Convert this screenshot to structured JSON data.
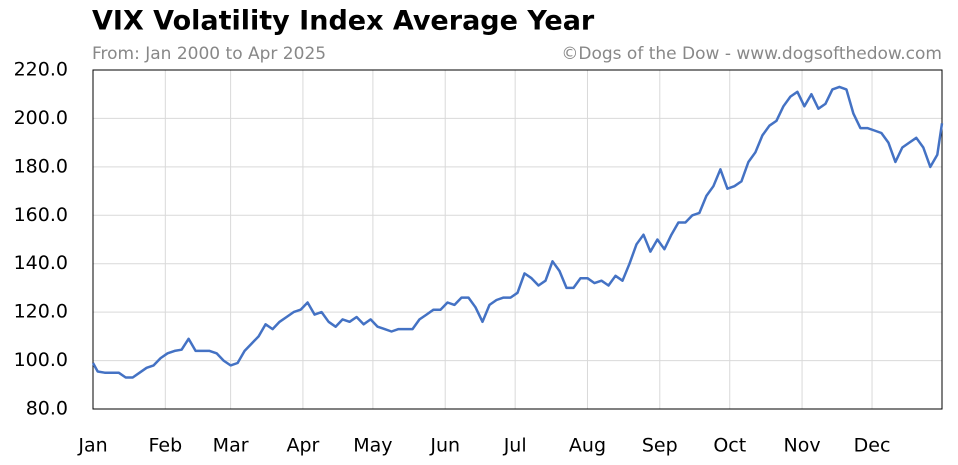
{
  "chart_data": {
    "type": "line",
    "title": "VIX Volatility Index Average Year",
    "subtitle": "From: Jan 2000 to Apr 2025",
    "source": "©Dogs of the Dow - www.dogsofthedow.com",
    "color": "#4472c4",
    "grid": true,
    "xlim": [
      1,
      365
    ],
    "xticks": [
      {
        "value": 1,
        "label": "Jan"
      },
      {
        "value": 32,
        "label": "Feb"
      },
      {
        "value": 60,
        "label": "Mar"
      },
      {
        "value": 91,
        "label": "Apr"
      },
      {
        "value": 121,
        "label": "May"
      },
      {
        "value": 152,
        "label": "Jun"
      },
      {
        "value": 182,
        "label": "Jul"
      },
      {
        "value": 213,
        "label": "Aug"
      },
      {
        "value": 244,
        "label": "Sep"
      },
      {
        "value": 274,
        "label": "Oct"
      },
      {
        "value": 305,
        "label": "Nov"
      },
      {
        "value": 335,
        "label": "Dec"
      }
    ],
    "ylim": [
      80,
      220
    ],
    "yticks": [
      {
        "value": 80,
        "label": "80.0"
      },
      {
        "value": 100,
        "label": "100.0"
      },
      {
        "value": 120,
        "label": "120.0"
      },
      {
        "value": 140,
        "label": "140.0"
      },
      {
        "value": 160,
        "label": "160.0"
      },
      {
        "value": 180,
        "label": "180.0"
      },
      {
        "value": 200,
        "label": "200.0"
      },
      {
        "value": 220,
        "label": "220.0"
      }
    ],
    "x": [
      1,
      3,
      6,
      9,
      12,
      15,
      18,
      21,
      24,
      27,
      30,
      33,
      36,
      39,
      42,
      45,
      48,
      51,
      54,
      57,
      60,
      63,
      66,
      69,
      72,
      75,
      78,
      81,
      84,
      87,
      90,
      93,
      96,
      99,
      102,
      105,
      108,
      111,
      114,
      117,
      120,
      123,
      126,
      129,
      132,
      135,
      138,
      141,
      144,
      147,
      150,
      153,
      156,
      159,
      162,
      165,
      168,
      171,
      174,
      177,
      180,
      183,
      186,
      189,
      192,
      195,
      198,
      201,
      204,
      207,
      210,
      213,
      216,
      219,
      222,
      225,
      228,
      231,
      234,
      237,
      240,
      243,
      246,
      249,
      252,
      255,
      258,
      261,
      264,
      267,
      270,
      273,
      276,
      279,
      282,
      285,
      288,
      291,
      294,
      297,
      300,
      303,
      306,
      309,
      312,
      315,
      318,
      321,
      324,
      327,
      330,
      333,
      336,
      339,
      342,
      345,
      348,
      351,
      354,
      357,
      360,
      363,
      365
    ],
    "values": [
      99,
      95.5,
      95,
      95,
      95,
      93,
      93,
      95,
      97,
      98,
      101,
      103,
      104,
      104.5,
      109,
      104,
      104,
      104,
      103,
      100,
      98,
      99,
      104,
      107,
      110,
      115,
      113,
      116,
      118,
      120,
      121,
      124,
      119,
      120,
      116,
      114,
      117,
      116,
      118,
      115,
      117,
      114,
      113,
      112,
      113,
      113,
      113,
      117,
      119,
      121,
      121,
      124,
      123,
      126,
      126,
      122,
      116,
      123,
      125,
      126,
      126,
      128,
      136,
      134,
      131,
      133,
      141,
      137,
      130,
      130,
      134,
      134,
      132,
      133,
      131,
      135,
      133,
      140,
      148,
      152,
      145,
      150,
      146,
      152,
      157,
      157,
      160,
      161,
      168,
      172,
      179,
      171,
      172,
      174,
      182,
      186,
      193,
      197,
      199,
      205,
      209,
      211,
      205,
      210,
      204,
      206,
      212,
      213,
      212,
      202,
      196,
      196,
      195,
      194,
      190,
      182,
      188,
      190,
      192,
      188,
      180,
      185,
      198
    ]
  }
}
